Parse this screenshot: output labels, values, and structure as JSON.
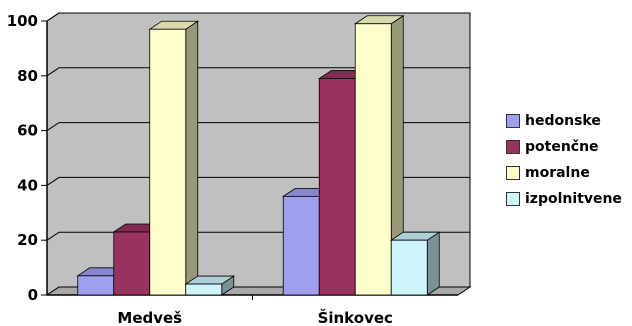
{
  "chart_data": {
    "type": "bar",
    "categories": [
      "Medveš",
      "Šinkovec"
    ],
    "series": [
      {
        "name": "hedonske",
        "values": [
          7,
          36
        ],
        "color": "#9f9fef"
      },
      {
        "name": "potenčne",
        "values": [
          23,
          79
        ],
        "color": "#98335f"
      },
      {
        "name": "moralne",
        "values": [
          97,
          99
        ],
        "color": "#ffffcb"
      },
      {
        "name": "izpolnitvene",
        "values": [
          4,
          20
        ],
        "color": "#ccf4fa"
      }
    ],
    "ylim": [
      0,
      100
    ],
    "yticks": [
      "0",
      "20",
      "40",
      "60",
      "80",
      "100"
    ],
    "title": "",
    "xlabel": "",
    "ylabel": "",
    "grid": true,
    "legend": "right",
    "wall_color": "#c0c0c0"
  }
}
